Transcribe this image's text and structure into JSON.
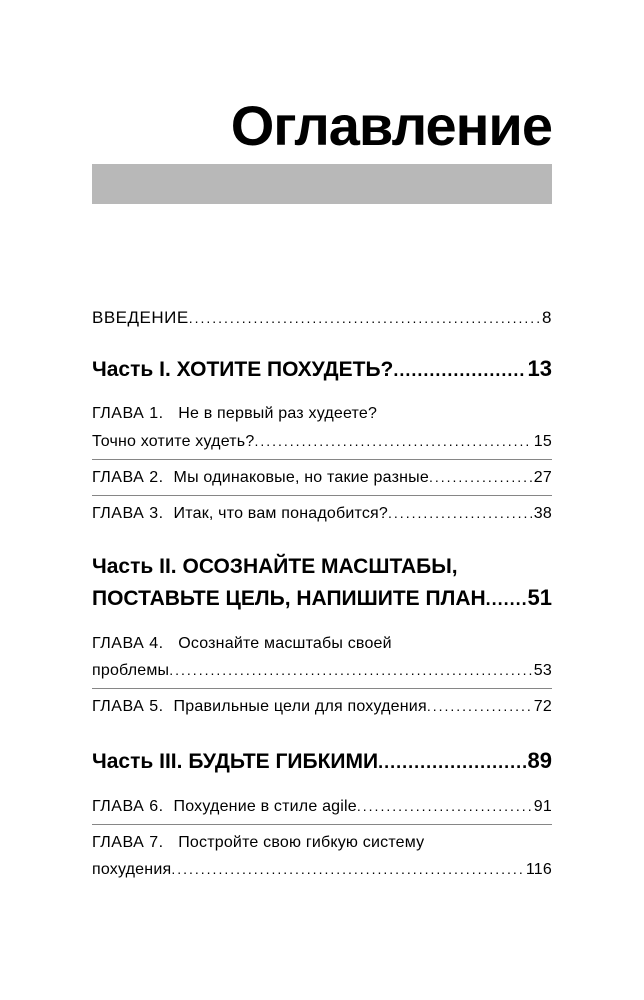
{
  "title": "Оглавление",
  "intro": {
    "label": "ВВЕДЕНИЕ",
    "page": "8"
  },
  "parts": [
    {
      "heading_lines": [
        "Часть I. ХОТИТЕ ПОХУДЕТЬ?"
      ],
      "page": "13",
      "chapters": [
        {
          "label": "ГЛАВА 1.",
          "lines": [
            "Не в первый раз худеете?",
            "Точно хотите худеть?"
          ],
          "page": "15"
        },
        {
          "label": "ГЛАВА 2.",
          "lines": [
            "Мы одинаковые, но такие разные"
          ],
          "page": "27"
        },
        {
          "label": "ГЛАВА 3.",
          "lines": [
            "Итак, что вам понадобится?"
          ],
          "page": "38"
        }
      ]
    },
    {
      "heading_lines": [
        "Часть II. ОСОЗНАЙТЕ МАСШТАБЫ,",
        "ПОСТАВЬТЕ ЦЕЛЬ, НАПИШИТЕ ПЛАН"
      ],
      "page": "51",
      "chapters": [
        {
          "label": "ГЛАВА 4.",
          "lines": [
            "Осознайте масштабы своей",
            "проблемы"
          ],
          "page": "53"
        },
        {
          "label": "ГЛАВА 5.",
          "lines": [
            "Правильные цели для похудения"
          ],
          "page": "72"
        }
      ]
    },
    {
      "heading_lines": [
        "Часть III. БУДЬТЕ ГИБКИМИ"
      ],
      "page": "89",
      "chapters": [
        {
          "label": "ГЛАВА 6.",
          "lines": [
            "Похудение в стиле agile"
          ],
          "page": "91"
        },
        {
          "label": "ГЛАВА 7.",
          "lines": [
            "Постройте свою гибкую систему",
            "похудения"
          ],
          "page": "116"
        }
      ]
    }
  ],
  "colors": {
    "graybar": "#b8b8b8",
    "rule": "#868686",
    "text": "#000000",
    "bg": "#ffffff"
  }
}
